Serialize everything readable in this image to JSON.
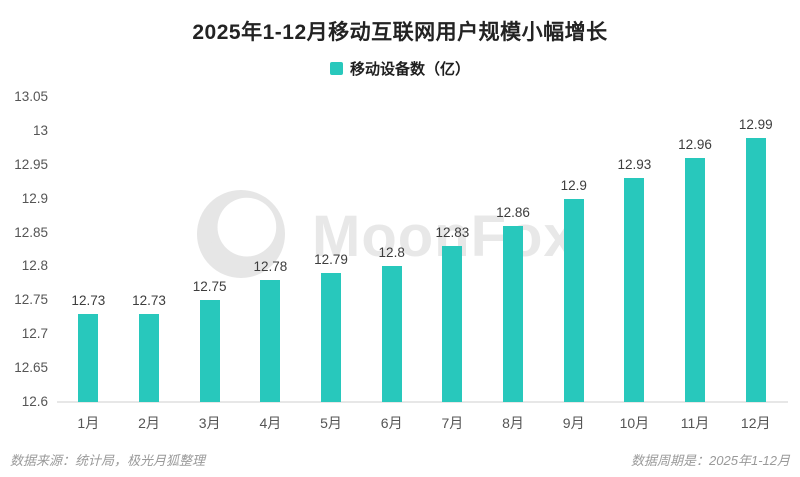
{
  "header": {
    "title": "2025年1-12月移动互联网用户规模小幅增长"
  },
  "legend": {
    "label": "移动设备数（亿）",
    "marker_color": "#28C8BC",
    "marker_icon": "square-icon"
  },
  "chart_data": {
    "type": "bar",
    "title": "2025年1-12月移动互联网用户规模小幅增长",
    "series_name": "移动设备数（亿）",
    "categories": [
      "1月",
      "2月",
      "3月",
      "4月",
      "5月",
      "6月",
      "7月",
      "8月",
      "9月",
      "10月",
      "11月",
      "12月"
    ],
    "values": [
      12.73,
      12.73,
      12.75,
      12.78,
      12.79,
      12.8,
      12.83,
      12.86,
      12.9,
      12.93,
      12.96,
      12.99
    ],
    "ylim": [
      12.6,
      13.05
    ],
    "yticks": [
      13.05,
      13,
      12.95,
      12.9,
      12.85,
      12.8,
      12.75,
      12.7,
      12.65,
      12.6
    ],
    "grid": false,
    "legend_position": "top",
    "bar_color": "#28C8BC",
    "value_labels_shown": true
  },
  "watermark": {
    "text": "MoonFox",
    "logo_icon": "fox-logo-icon",
    "color": "#e8e8e8"
  },
  "footer": {
    "source": "数据来源：统计局，极光月狐整理",
    "period": "数据周期是：2025年1-12月"
  }
}
